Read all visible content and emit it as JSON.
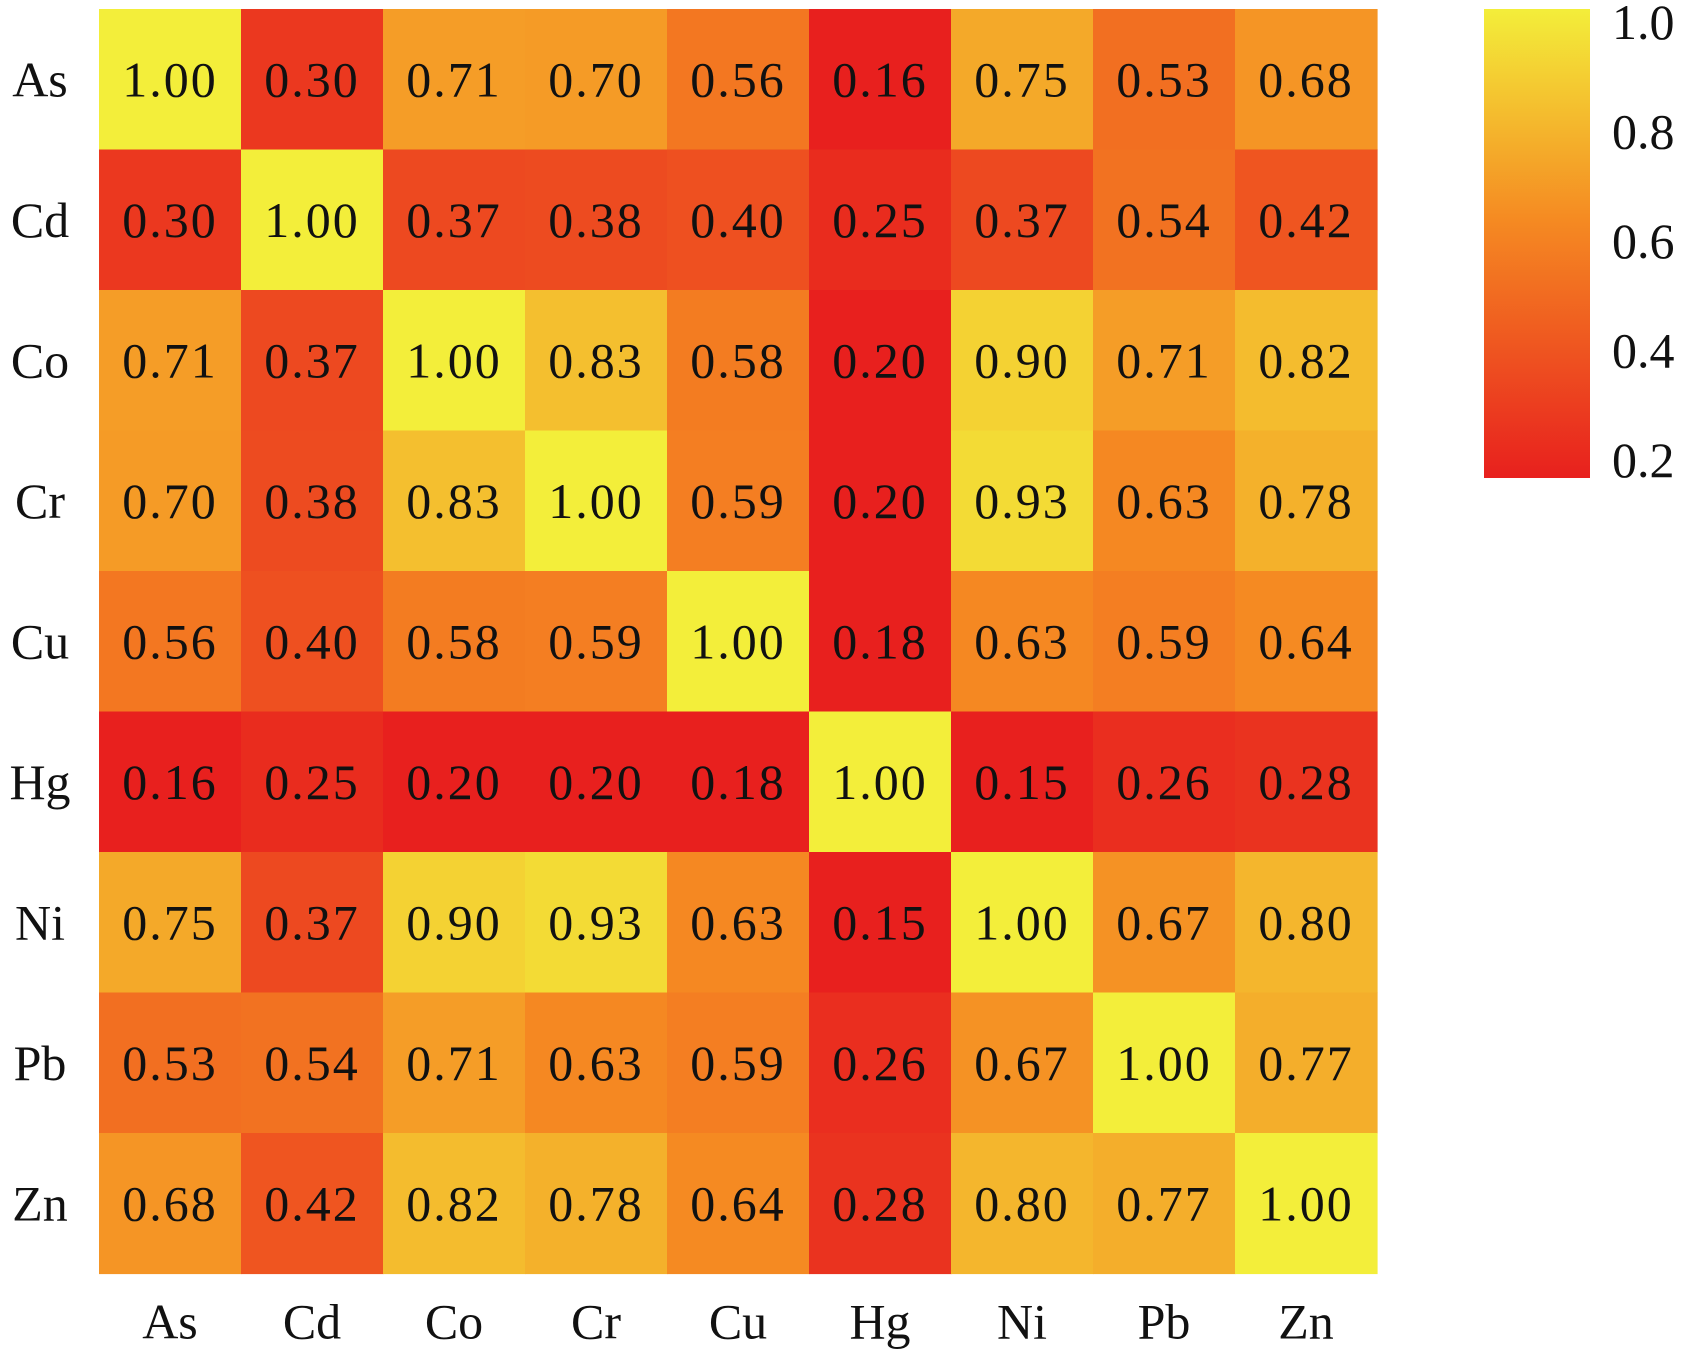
{
  "chart_data": {
    "type": "heatmap",
    "title": "",
    "xlabel": "",
    "ylabel": "",
    "x_categories": [
      "As",
      "Cd",
      "Co",
      "Cr",
      "Cu",
      "Hg",
      "Ni",
      "Pb",
      "Zn"
    ],
    "y_categories": [
      "As",
      "Cd",
      "Co",
      "Cr",
      "Cu",
      "Hg",
      "Ni",
      "Pb",
      "Zn"
    ],
    "values": [
      [
        1.0,
        0.3,
        0.71,
        0.7,
        0.56,
        0.16,
        0.75,
        0.53,
        0.68
      ],
      [
        0.3,
        1.0,
        0.37,
        0.38,
        0.4,
        0.25,
        0.37,
        0.54,
        0.42
      ],
      [
        0.71,
        0.37,
        1.0,
        0.83,
        0.58,
        0.2,
        0.9,
        0.71,
        0.82
      ],
      [
        0.7,
        0.38,
        0.83,
        1.0,
        0.59,
        0.2,
        0.93,
        0.63,
        0.78
      ],
      [
        0.56,
        0.4,
        0.58,
        0.59,
        1.0,
        0.18,
        0.63,
        0.59,
        0.64
      ],
      [
        0.16,
        0.25,
        0.2,
        0.2,
        0.18,
        1.0,
        0.15,
        0.26,
        0.28
      ],
      [
        0.75,
        0.37,
        0.9,
        0.93,
        0.63,
        0.15,
        1.0,
        0.67,
        0.8
      ],
      [
        0.53,
        0.54,
        0.71,
        0.63,
        0.59,
        0.26,
        0.67,
        1.0,
        0.77
      ],
      [
        0.68,
        0.42,
        0.82,
        0.78,
        0.64,
        0.28,
        0.8,
        0.77,
        1.0
      ]
    ],
    "value_format_decimals": 2,
    "colorbar": {
      "min": 0.2,
      "max": 1.0,
      "ticks": [
        "1.0",
        "0.8",
        "0.6",
        "0.4",
        "0.2"
      ],
      "placement": "top-right"
    },
    "colormap": {
      "low": "#e8201e",
      "mid": "#f58a22",
      "high": "#f3ee3a"
    },
    "grid": false,
    "legend": "colorbar right"
  }
}
